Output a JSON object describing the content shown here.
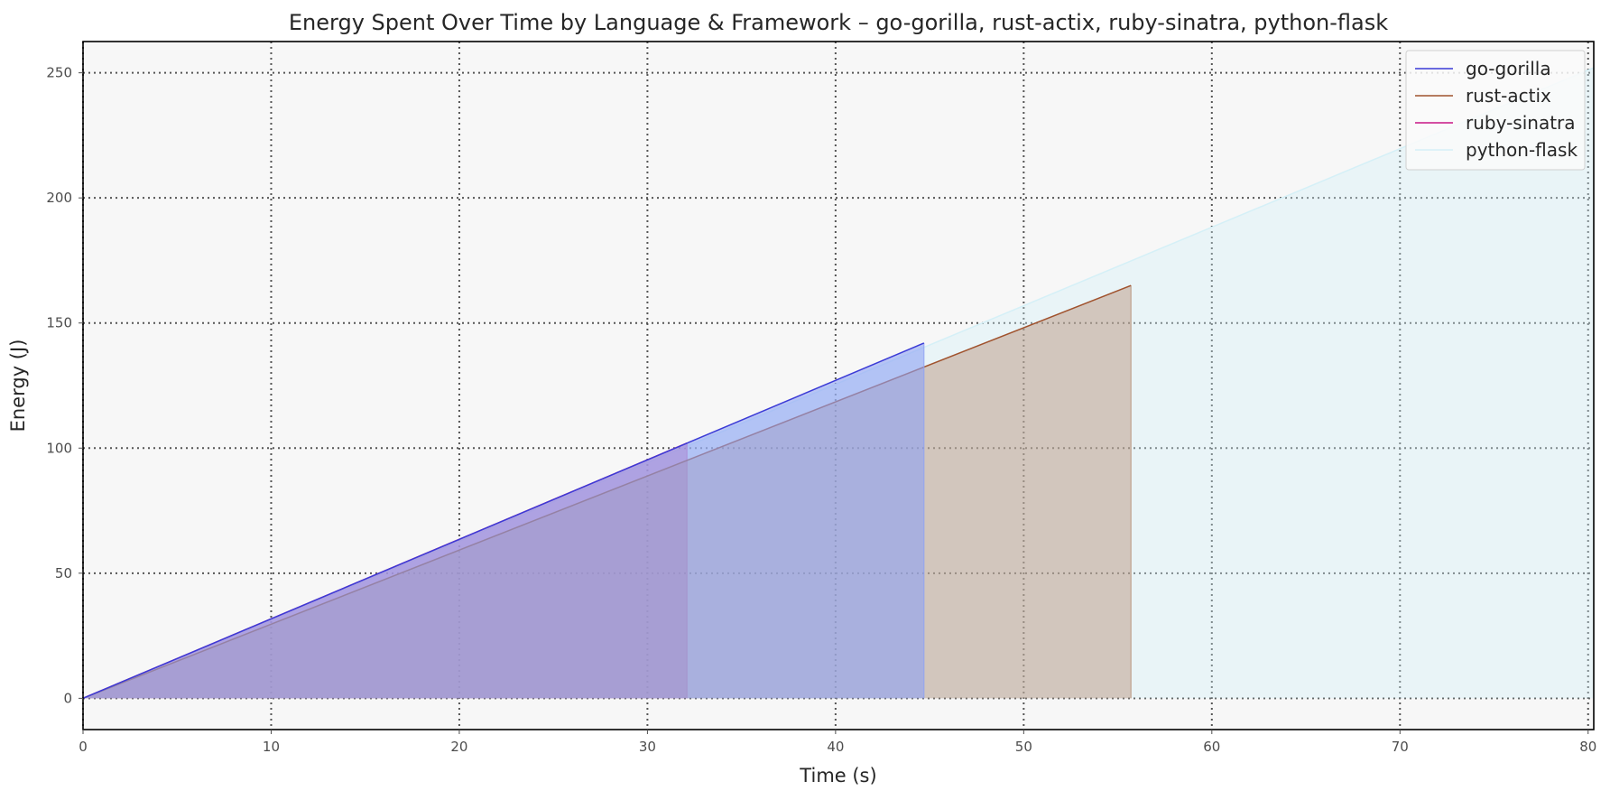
{
  "chart_data": {
    "type": "area",
    "title": "Energy Spent Over Time by Language & Framework – go-gorilla, rust-actix, ruby-sinatra, python-flask",
    "xlabel": "Time (s)",
    "ylabel": "Energy (J)",
    "xlim": [
      0,
      80.3
    ],
    "ylim": [
      -12.5,
      262.5
    ],
    "xticks": [
      0,
      10,
      20,
      30,
      40,
      50,
      60,
      70,
      80
    ],
    "yticks": [
      0,
      50,
      100,
      150,
      200,
      250
    ],
    "grid": true,
    "legend_position": "top-right",
    "series": [
      {
        "name": "go-gorilla",
        "color": "#3b3bd6",
        "fill": "#8ea2f4",
        "fill_opacity": 0.6,
        "x": [
          0,
          44.7
        ],
        "y": [
          0,
          142
        ]
      },
      {
        "name": "rust-actix",
        "color": "#a0522d",
        "fill": "#b58f75",
        "fill_opacity": 0.45,
        "x": [
          0,
          55.7
        ],
        "y": [
          0,
          165
        ]
      },
      {
        "name": "ruby-sinatra",
        "color": "#c71585",
        "fill": "#d65fa3",
        "fill_opacity": 0.55,
        "x": [
          0,
          32.1
        ],
        "y": [
          0,
          102
        ]
      },
      {
        "name": "python-flask",
        "color": "#d5f0f7",
        "fill": "#cfeef7",
        "fill_opacity": 0.35,
        "x": [
          0,
          80.3
        ],
        "y": [
          0,
          252
        ]
      }
    ]
  }
}
